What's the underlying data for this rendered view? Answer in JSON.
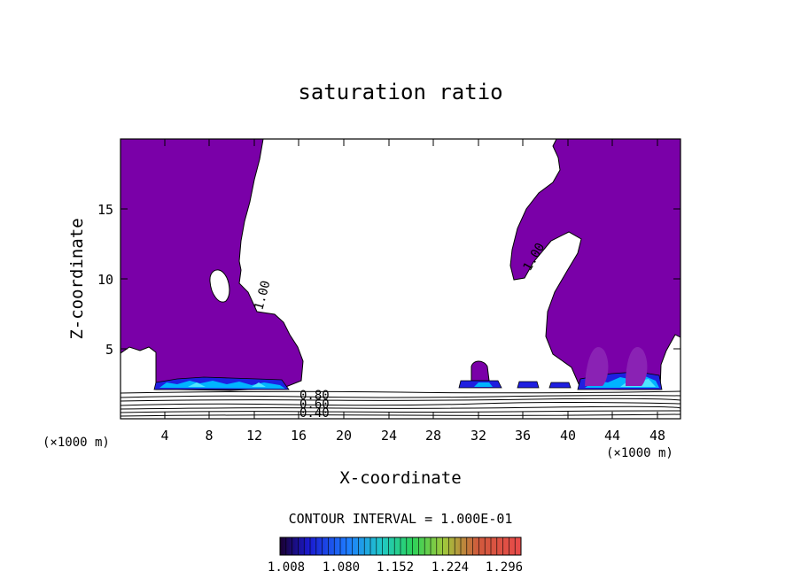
{
  "chart_data": {
    "type": "contour",
    "title": "saturation ratio",
    "xlabel": "X-coordinate",
    "ylabel": "Z-coordinate",
    "x_unit_left": "(×1000 m)",
    "x_unit_right": "(×1000 m)",
    "xlim": [
      0,
      50
    ],
    "ylim": [
      0,
      20
    ],
    "x_ticks": [
      "4",
      "8",
      "12",
      "16",
      "20",
      "24",
      "28",
      "32",
      "36",
      "40",
      "44",
      "48"
    ],
    "y_ticks": [
      "5",
      "10",
      "15"
    ],
    "contour_labels": [
      "1.00",
      "1.00",
      "0.80",
      "0.60",
      "0.40"
    ],
    "contour_interval_text": "CONTOUR INTERVAL = 1.000E-01",
    "colorbar_labels": [
      "1.008",
      "1.080",
      "1.152",
      "1.224",
      "1.296"
    ],
    "colors": {
      "fill": "#7a00a8",
      "fill_light": "#8a22b4",
      "low": "#1f1fe0",
      "mid": "#00b4ff",
      "cyan": "#4fe6ff"
    }
  }
}
